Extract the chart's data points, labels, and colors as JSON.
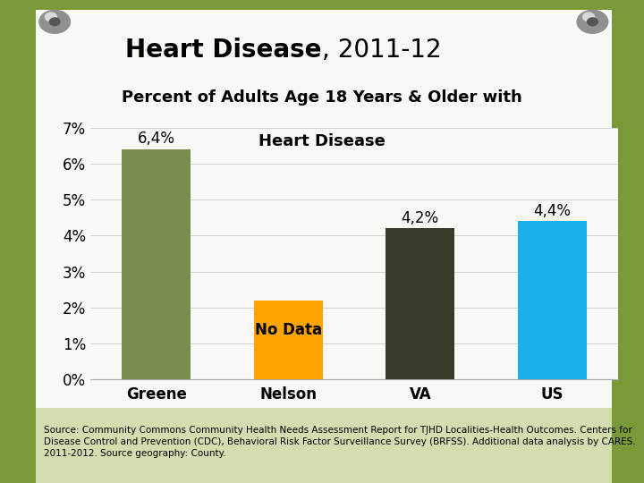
{
  "title_bold": "Heart Disease",
  "title_rest": ", 2011-12",
  "subtitle_line1": "Percent of Adults Age 18 Years & Older with",
  "subtitle_line2": "Heart Disease",
  "categories": [
    "Greene",
    "Nelson",
    "VA",
    "US"
  ],
  "values": [
    6.4,
    2.2,
    4.2,
    4.4
  ],
  "bar_colors": [
    "#7a8c50",
    "#FFA500",
    "#3a3a2a",
    "#1ab0e8"
  ],
  "labels": [
    "6,4%",
    "No Data",
    "4,2%",
    "4,4%"
  ],
  "no_data_index": 1,
  "ylim": [
    0,
    7
  ],
  "yticks": [
    0,
    1,
    2,
    3,
    4,
    5,
    6,
    7
  ],
  "ytick_labels": [
    "0%",
    "1%",
    "2%",
    "3%",
    "4%",
    "5%",
    "6%",
    "7%"
  ],
  "source_text": "Source: Community Commons Community Health Needs Assessment Report for TJHD Localities-Health Outcomes. Centers for\nDisease Control and Prevention (CDC), Behavioral Risk Factor Surveillance Survey (BRFSS). Additional data analysis by CARES.\n2011-2012. Source geography: County.",
  "bg_outer": "#7a9a3a",
  "bg_paper": "#f8f8f4",
  "bg_source": "#d4dcb0",
  "title_fontsize": 20,
  "subtitle_fontsize": 13,
  "bar_label_fontsize": 12,
  "axis_tick_fontsize": 12,
  "source_fontsize": 7.5
}
